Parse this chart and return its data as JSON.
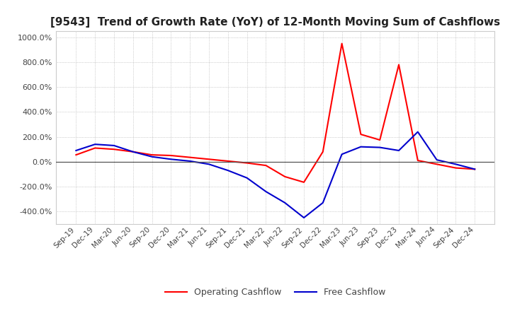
{
  "title": "[9543]  Trend of Growth Rate (YoY) of 12-Month Moving Sum of Cashflows",
  "title_fontsize": 11,
  "ylim": [
    -500,
    1050
  ],
  "yticks": [
    -400,
    -200,
    0,
    200,
    400,
    600,
    800,
    1000
  ],
  "legend_labels": [
    "Operating Cashflow",
    "Free Cashflow"
  ],
  "line_colors": [
    "#ff0000",
    "#0000cd"
  ],
  "background_color": "#ffffff",
  "grid_color": "#aaaaaa",
  "x_labels": [
    "Sep-19",
    "Dec-19",
    "Mar-20",
    "Jun-20",
    "Sep-20",
    "Dec-20",
    "Mar-21",
    "Jun-21",
    "Sep-21",
    "Dec-21",
    "Mar-22",
    "Jun-22",
    "Sep-22",
    "Dec-22",
    "Mar-23",
    "Jun-23",
    "Sep-23",
    "Dec-23",
    "Mar-24",
    "Jun-24",
    "Sep-24",
    "Dec-24"
  ],
  "operating_cashflow": [
    55,
    110,
    100,
    80,
    55,
    50,
    35,
    20,
    5,
    -10,
    -30,
    -120,
    -165,
    80,
    950,
    220,
    175,
    780,
    10,
    -20,
    -50,
    -60
  ],
  "free_cashflow": [
    90,
    140,
    130,
    80,
    40,
    20,
    5,
    -20,
    -70,
    -130,
    -240,
    -330,
    -450,
    -330,
    60,
    120,
    115,
    90,
    240,
    15,
    -20,
    -60
  ]
}
